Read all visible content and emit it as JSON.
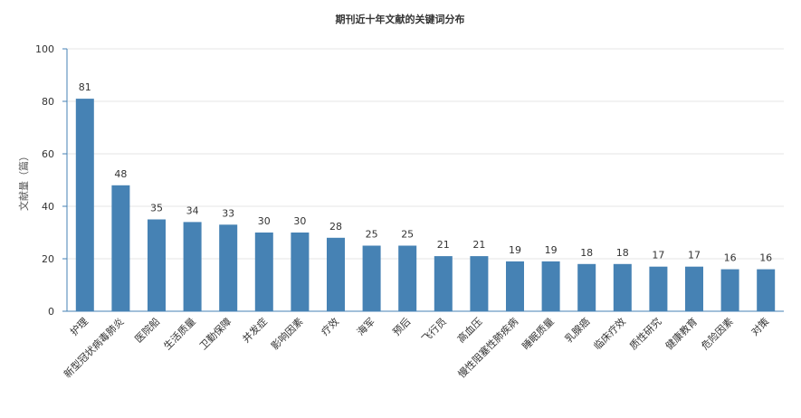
{
  "chart_data": {
    "type": "bar",
    "title": "期刊近十年文献的关键词分布",
    "xlabel": "",
    "ylabel": "文献量（篇）",
    "ylim": [
      0,
      100
    ],
    "yticks": [
      0,
      20,
      40,
      60,
      80,
      100
    ],
    "grid": true,
    "bar_color": "#4682b4",
    "axis_color": "#4682b4",
    "categories": [
      "护理",
      "新型冠状病毒肺炎",
      "医院船",
      "生活质量",
      "卫勤保障",
      "并发症",
      "影响因素",
      "疗效",
      "海军",
      "预后",
      "飞行员",
      "高血压",
      "慢性阻塞性肺疾病",
      "睡眠质量",
      "乳腺癌",
      "临床疗效",
      "质性研究",
      "健康教育",
      "危险因素",
      "对策"
    ],
    "values": [
      81,
      48,
      35,
      34,
      33,
      30,
      30,
      28,
      25,
      25,
      21,
      21,
      19,
      19,
      18,
      18,
      17,
      17,
      16,
      16
    ]
  }
}
